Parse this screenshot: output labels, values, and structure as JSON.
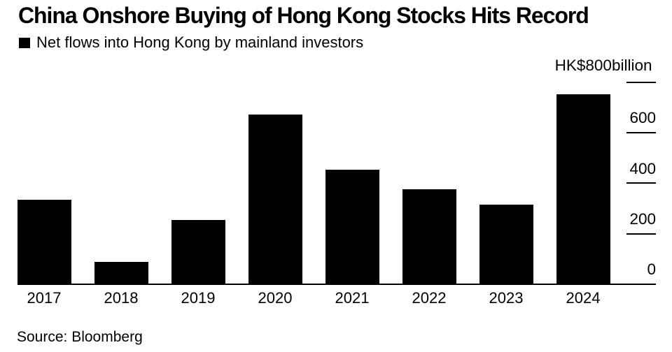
{
  "title": "China Onshore Buying of Hong Kong Stocks Hits Record",
  "legend": {
    "label": "Net flows into Hong Kong by mainland investors",
    "swatch_color": "#000000"
  },
  "source": "Source: Bloomberg",
  "colors": {
    "background": "#ffffff",
    "bar": "#000000",
    "text": "#000000",
    "axis": "#000000"
  },
  "chart_data": {
    "type": "bar",
    "title": "China Onshore Buying of Hong Kong Stocks Hits Record",
    "series_name": "Net flows into Hong Kong by mainland investors",
    "categories": [
      "2017",
      "2018",
      "2019",
      "2020",
      "2021",
      "2022",
      "2023",
      "2024"
    ],
    "values": [
      335,
      88,
      254,
      673,
      452,
      377,
      316,
      751
    ],
    "unit_label": "HK$800billion",
    "y_ticks": [
      0,
      200,
      400,
      600,
      800
    ],
    "y_tick_labels": [
      "0",
      "200",
      "400",
      "600",
      "HK$800billion"
    ],
    "ylim": [
      0,
      800
    ],
    "grid": false,
    "legend_position": "top-left",
    "axis_side": "right",
    "bar_color": "#000000"
  }
}
